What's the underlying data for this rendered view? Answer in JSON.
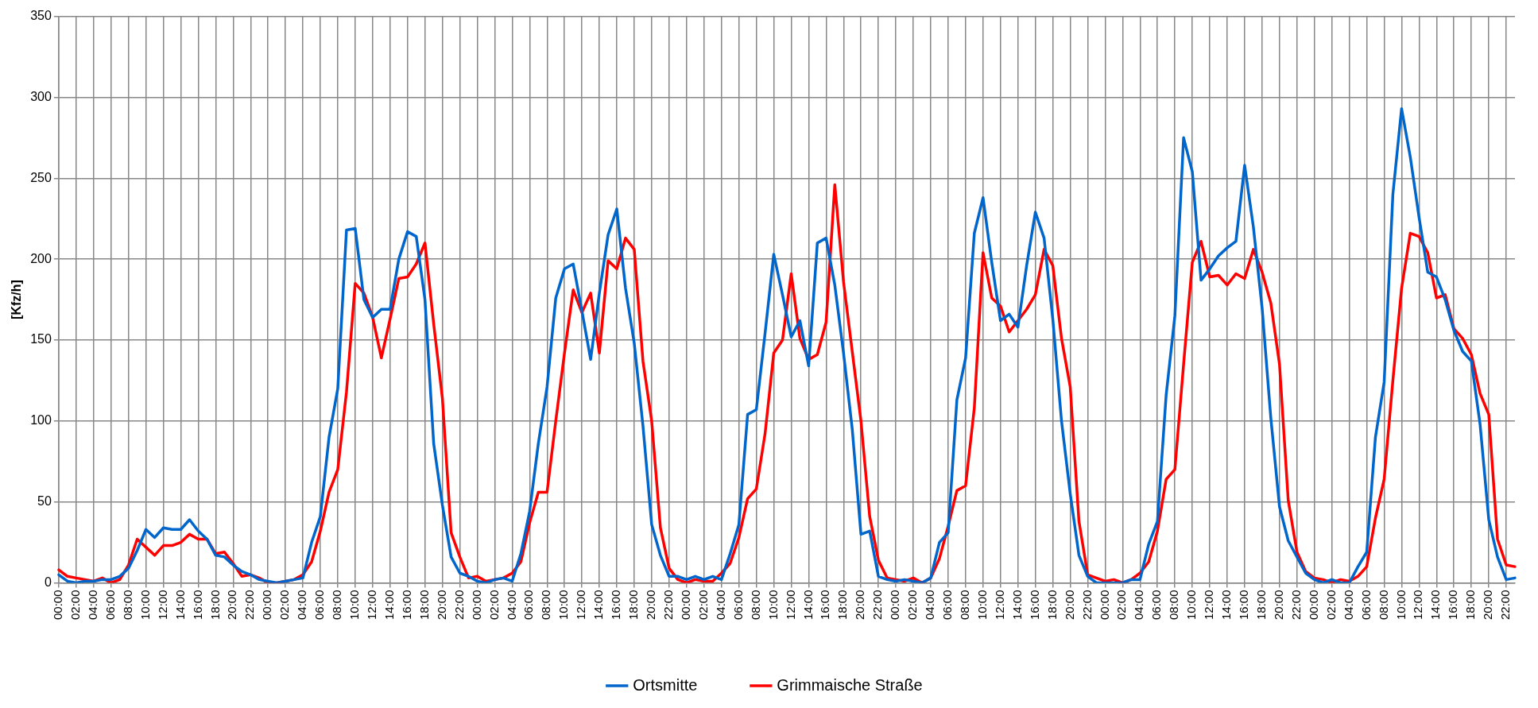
{
  "chart_data": {
    "type": "line",
    "ylabel": "[Kfz/h]",
    "categories": [
      "00:00",
      null,
      "02:00",
      null,
      "04:00",
      null,
      "06:00",
      null,
      "08:00",
      null,
      "10:00",
      null,
      "12:00",
      null,
      "14:00",
      null,
      "16:00",
      null,
      "18:00",
      null,
      "20:00",
      null,
      "22:00",
      null,
      "00:00",
      null,
      "02:00",
      null,
      "04:00",
      null,
      "06:00",
      null,
      "08:00",
      null,
      "10:00",
      null,
      "12:00",
      null,
      "14:00",
      null,
      "16:00",
      null,
      "18:00",
      null,
      "20:00",
      null,
      "22:00",
      null,
      "00:00",
      null,
      "02:00",
      null,
      "04:00",
      null,
      "06:00",
      null,
      "08:00",
      null,
      "10:00",
      null,
      "12:00",
      null,
      "14:00",
      null,
      "16:00",
      null,
      "18:00",
      null,
      "20:00",
      null,
      "22:00",
      null,
      "00:00",
      null,
      "02:00",
      null,
      "04:00",
      null,
      "06:00",
      null,
      "08:00",
      null,
      "10:00",
      null,
      "12:00",
      null,
      "14:00",
      null,
      "16:00",
      null,
      "18:00",
      null,
      "20:00",
      null,
      "22:00",
      null,
      "00:00",
      null,
      "02:00",
      null,
      "04:00",
      null,
      "06:00",
      null,
      "08:00",
      null,
      "10:00",
      null,
      "12:00",
      null,
      "14:00",
      null,
      "16:00",
      null,
      "18:00",
      null,
      "20:00",
      null,
      "22:00",
      null,
      "00:00",
      null,
      "02:00",
      null,
      "04:00",
      null,
      "06:00",
      null,
      "08:00",
      null,
      "10:00",
      null,
      "12:00",
      null,
      "14:00",
      null,
      "16:00",
      null,
      "18:00",
      null,
      "20:00",
      null,
      "22:00",
      null,
      "00:00",
      null,
      "02:00",
      null,
      "04:00",
      null,
      "06:00",
      null,
      "08:00",
      null,
      "10:00",
      null,
      "12:00",
      null,
      "14:00",
      null,
      "16:00",
      null,
      "18:00",
      null,
      "20:00",
      null,
      "22:00",
      null
    ],
    "series": [
      {
        "name": "Ortsmitte",
        "color": "#0066cc",
        "values": [
          5,
          1,
          0,
          1,
          1,
          2,
          2,
          4,
          9,
          20,
          33,
          28,
          34,
          33,
          33,
          39,
          32,
          27,
          17,
          16,
          11,
          7,
          5,
          2,
          1,
          0,
          1,
          2,
          3,
          25,
          41,
          90,
          120,
          218,
          219,
          175,
          164,
          169,
          169,
          200,
          217,
          214,
          175,
          86,
          48,
          16,
          6,
          4,
          1,
          0,
          2,
          3,
          1,
          18,
          44,
          86,
          121,
          176,
          194,
          197,
          168,
          138,
          179,
          215,
          231,
          182,
          148,
          97,
          36,
          17,
          4,
          4,
          2,
          4,
          2,
          4,
          2,
          18,
          36,
          104,
          107,
          154,
          203,
          178,
          152,
          162,
          134,
          210,
          213,
          184,
          142,
          95,
          30,
          32,
          4,
          2,
          1,
          2,
          1,
          0,
          3,
          25,
          31,
          113,
          139,
          216,
          238,
          198,
          162,
          166,
          158,
          196,
          229,
          213,
          163,
          100,
          55,
          17,
          4,
          0,
          0,
          0,
          0,
          2,
          2,
          24,
          38,
          116,
          165,
          275,
          254,
          187,
          194,
          202,
          207,
          211,
          258,
          220,
          170,
          102,
          47,
          26,
          16,
          6,
          2,
          0,
          2,
          0,
          0,
          10,
          19,
          90,
          124,
          240,
          293,
          263,
          226,
          192,
          189,
          175,
          156,
          143,
          137,
          98,
          39,
          16,
          2,
          3
        ]
      },
      {
        "name": "Grimmaische Straße",
        "color": "#ff0000",
        "values": [
          8,
          4,
          3,
          2,
          1,
          3,
          0,
          2,
          11,
          27,
          22,
          17,
          23,
          23,
          25,
          30,
          27,
          27,
          18,
          19,
          12,
          4,
          5,
          3,
          0,
          0,
          1,
          2,
          5,
          13,
          32,
          56,
          70,
          118,
          185,
          179,
          164,
          139,
          163,
          188,
          189,
          197,
          210,
          160,
          114,
          31,
          16,
          3,
          4,
          1,
          2,
          3,
          6,
          13,
          37,
          56,
          56,
          100,
          142,
          181,
          167,
          179,
          142,
          199,
          194,
          213,
          206,
          137,
          100,
          34,
          9,
          2,
          0,
          2,
          1,
          1,
          6,
          12,
          28,
          52,
          58,
          92,
          142,
          150,
          191,
          151,
          138,
          141,
          161,
          246,
          186,
          143,
          100,
          41,
          14,
          3,
          2,
          1,
          3,
          0,
          3,
          15,
          35,
          57,
          60,
          108,
          204,
          176,
          171,
          155,
          162,
          169,
          178,
          206,
          196,
          151,
          121,
          38,
          5,
          3,
          1,
          2,
          0,
          2,
          6,
          13,
          32,
          64,
          70,
          135,
          198,
          211,
          189,
          190,
          184,
          191,
          188,
          206,
          192,
          173,
          135,
          51,
          19,
          7,
          3,
          2,
          0,
          2,
          1,
          4,
          10,
          40,
          64,
          125,
          182,
          216,
          214,
          204,
          176,
          178,
          157,
          151,
          141,
          117,
          104,
          27,
          11,
          10
        ]
      }
    ],
    "ylim": [
      0,
      350
    ],
    "yticks": [
      0,
      50,
      100,
      150,
      200,
      250,
      300,
      350
    ],
    "grid": true,
    "legend": "bottom",
    "marker": "none",
    "line_style": "solid"
  }
}
